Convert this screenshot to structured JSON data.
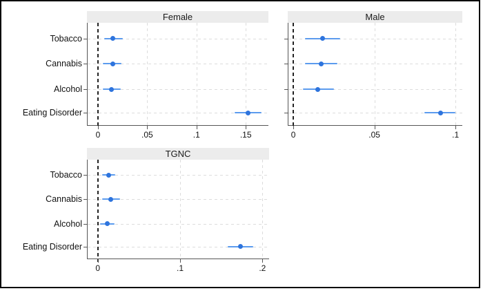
{
  "figure": {
    "background": "#ffffff",
    "border_color": "#000000",
    "title_bar_bg": "#ececec"
  },
  "colors": {
    "marker": "#2e74dd",
    "ci_line": "#5b9bee",
    "grid": "#dcdcdc",
    "axis": "#555555",
    "zero_line": "#222222",
    "text": "#111111"
  },
  "chart_data": [
    {
      "type": "scatter",
      "title": "Female",
      "categories": [
        "Tobacco",
        "Cannabis",
        "Alcohol",
        "Eating Disorder"
      ],
      "estimates": [
        0.015,
        0.015,
        0.014,
        0.152
      ],
      "ci_low": [
        0.006,
        0.005,
        0.005,
        0.139
      ],
      "ci_high": [
        0.025,
        0.024,
        0.023,
        0.166
      ],
      "xticks": [
        0,
        0.05,
        0.1,
        0.15
      ],
      "xtick_labels": [
        "0",
        ".05",
        ".1",
        ".15"
      ],
      "xlim": [
        -0.0105,
        0.173
      ],
      "xlabel": "",
      "ylabel": "",
      "grid": "on",
      "zero_line": "dashed-vertical",
      "show_category_labels": true,
      "legend": "none"
    },
    {
      "type": "scatter",
      "title": "Male",
      "categories": [
        "Tobacco",
        "Cannabis",
        "Alcohol",
        "Eating Disorder"
      ],
      "estimates": [
        0.018,
        0.017,
        0.015,
        0.091
      ],
      "ci_low": [
        0.007,
        0.007,
        0.006,
        0.081
      ],
      "ci_high": [
        0.029,
        0.027,
        0.025,
        0.1
      ],
      "xticks": [
        0,
        0.05,
        0.1
      ],
      "xtick_labels": [
        "0",
        ".05",
        ".1"
      ],
      "xlim": [
        -0.003,
        0.1042
      ],
      "xlabel": "",
      "ylabel": "",
      "grid": "on",
      "zero_line": "dashed-vertical",
      "show_category_labels": false,
      "legend": "none"
    },
    {
      "type": "scatter",
      "title": "TGNC",
      "categories": [
        "Tobacco",
        "Cannabis",
        "Alcohol",
        "Eating Disorder"
      ],
      "estimates": [
        0.013,
        0.016,
        0.012,
        0.173
      ],
      "ci_low": [
        0.005,
        0.005,
        0.003,
        0.158
      ],
      "ci_high": [
        0.021,
        0.027,
        0.02,
        0.189
      ],
      "xticks": [
        0,
        0.1,
        0.2
      ],
      "xtick_labels": [
        "0",
        ".1",
        ".2"
      ],
      "xlim": [
        -0.0123,
        0.2081
      ],
      "xlabel": "",
      "ylabel": "",
      "grid": "on",
      "zero_line": "dashed-vertical",
      "show_category_labels": true,
      "legend": "none"
    }
  ]
}
